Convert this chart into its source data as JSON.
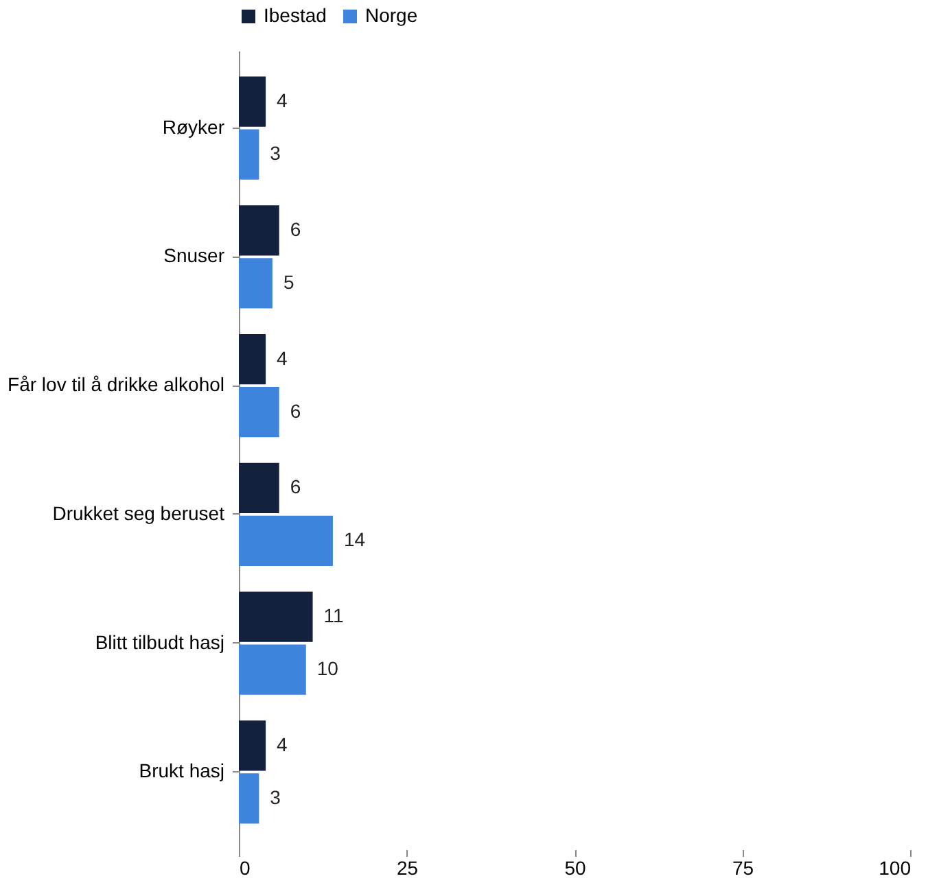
{
  "chart_data": {
    "type": "bar",
    "orientation": "horizontal",
    "categories": [
      "Røyker",
      "Snuser",
      "Får lov til å drikke alkohol",
      "Drukket seg beruset",
      "Blitt tilbudt hasj",
      "Brukt hasj"
    ],
    "series": [
      {
        "name": "Ibestad",
        "color": "#14213d",
        "values": [
          4,
          6,
          4,
          6,
          11,
          4
        ]
      },
      {
        "name": "Norge",
        "color": "#3f84dc",
        "values": [
          3,
          5,
          6,
          14,
          10,
          3
        ]
      }
    ],
    "xlim": [
      0,
      100
    ],
    "xticks": [
      0,
      25,
      50,
      75,
      100
    ],
    "data_labels": true,
    "legend": "top",
    "grid": false
  }
}
